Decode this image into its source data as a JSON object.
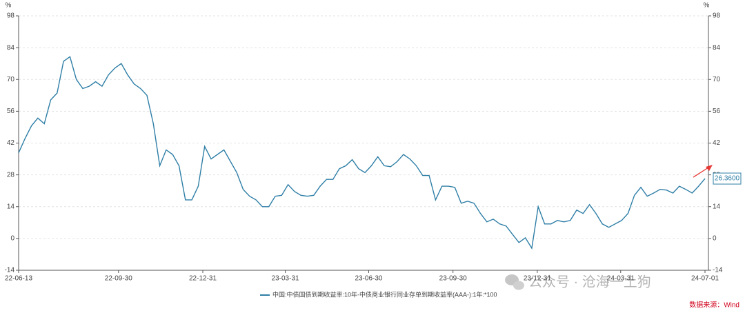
{
  "chart_data": {
    "type": "line",
    "y_unit": "%",
    "y2_unit": "%",
    "x": [
      "22-06-13",
      "22-06-20",
      "22-06-27",
      "22-07-04",
      "22-07-11",
      "22-07-18",
      "22-07-25",
      "22-08-01",
      "22-08-08",
      "22-08-15",
      "22-08-22",
      "22-08-29",
      "22-09-05",
      "22-09-12",
      "22-09-19",
      "22-09-26",
      "22-10-03",
      "22-10-10",
      "22-10-17",
      "22-10-24",
      "22-10-31",
      "22-11-07",
      "22-11-14",
      "22-11-21",
      "22-11-28",
      "22-12-05",
      "22-12-12",
      "22-12-19",
      "22-12-26",
      "23-01-02",
      "23-01-09",
      "23-01-16",
      "23-01-23",
      "23-01-30",
      "23-02-06",
      "23-02-13",
      "23-02-20",
      "23-02-27",
      "23-03-06",
      "23-03-13",
      "23-03-20",
      "23-03-27",
      "23-04-03",
      "23-04-10",
      "23-04-17",
      "23-04-24",
      "23-05-01",
      "23-05-08",
      "23-05-15",
      "23-05-22",
      "23-05-29",
      "23-06-05",
      "23-06-12",
      "23-06-19",
      "23-06-26",
      "23-07-03",
      "23-07-10",
      "23-07-17",
      "23-07-24",
      "23-07-31",
      "23-08-07",
      "23-08-14",
      "23-08-21",
      "23-08-28",
      "23-09-04",
      "23-09-11",
      "23-09-18",
      "23-09-25",
      "23-10-02",
      "23-10-09",
      "23-10-16",
      "23-10-23",
      "23-10-30",
      "23-11-06",
      "23-11-13",
      "23-11-20",
      "23-11-27",
      "23-12-04",
      "23-12-11",
      "23-12-18",
      "23-12-25",
      "24-01-01",
      "24-01-08",
      "24-01-15",
      "24-01-22",
      "24-01-29",
      "24-02-05",
      "24-02-12",
      "24-02-19",
      "24-02-26",
      "24-03-04",
      "24-03-11",
      "24-03-18",
      "24-03-25",
      "24-04-01",
      "24-04-08",
      "24-04-15",
      "24-04-22",
      "24-04-29",
      "24-05-06",
      "24-05-13",
      "24-05-20",
      "24-05-27",
      "24-06-03",
      "24-06-10",
      "24-06-17",
      "24-06-24",
      "24-07-01"
    ],
    "series": [
      {
        "name": "中国:中债国债到期收益率:10年-中债商业银行同业存单到期收益率(AAA-):1年:*100",
        "color": "#2e7ea6",
        "values": [
          37.7,
          44,
          49.6,
          53,
          50.5,
          61,
          64,
          78,
          80,
          70,
          66,
          67,
          69,
          67,
          72,
          75,
          77,
          72,
          68,
          66,
          63,
          50.5,
          32,
          39,
          37,
          32,
          17,
          17,
          23,
          40.5,
          35,
          37,
          39,
          34,
          29,
          21.6,
          18.6,
          17,
          14,
          14,
          18.6,
          19,
          23.7,
          20.7,
          19,
          18.6,
          19,
          23,
          26,
          26,
          30.7,
          32,
          34.7,
          30.7,
          29,
          32,
          36,
          32,
          31.6,
          33.8,
          37,
          35,
          32,
          27.7,
          27.7,
          17,
          23,
          23,
          22.5,
          15.5,
          16.4,
          15.5,
          11,
          7.3,
          8.5,
          6.4,
          5.5,
          1.8,
          -1.8,
          0.3,
          -4.3,
          14,
          6.4,
          6.4,
          7.9,
          7.3,
          7.9,
          12.5,
          11,
          14.9,
          11,
          6.4,
          4.9,
          6.4,
          7.9,
          11,
          19,
          22.5,
          18.6,
          20,
          21.6,
          21.3,
          20,
          23,
          21.6,
          20,
          23,
          26.36
        ],
        "value_labels": [
          null,
          null,
          null,
          null,
          null,
          null,
          null,
          null,
          null,
          null,
          null,
          null,
          null,
          null,
          null,
          null,
          null,
          null,
          null,
          null,
          null,
          null,
          null,
          null,
          null,
          null,
          null,
          null,
          null,
          null,
          null,
          null,
          null,
          null,
          null,
          null,
          null,
          null,
          null,
          null,
          null,
          null,
          null,
          null,
          null,
          null,
          null,
          null,
          null,
          null,
          null,
          null,
          null,
          null,
          null,
          null,
          null,
          null,
          null,
          null,
          null,
          null,
          null,
          null,
          null,
          null,
          null,
          null,
          null,
          null,
          null,
          null,
          null,
          null,
          null,
          null,
          null,
          null,
          null,
          null,
          null,
          null,
          null,
          null,
          null,
          null,
          null,
          null,
          null,
          null,
          null,
          null,
          null,
          null,
          null,
          null,
          null,
          null,
          null,
          null,
          null,
          null,
          null,
          null,
          null,
          null,
          null,
          "26.3600"
        ]
      }
    ],
    "xlim": [
      "22-06-13",
      "24-07-01"
    ],
    "xticks": [
      "22-06-13",
      "22-09-30",
      "22-12-31",
      "23-03-31",
      "23-06-30",
      "23-09-30",
      "23-12-31",
      "24-03-31",
      "24-07-01"
    ],
    "ylim": [
      -14,
      98
    ],
    "yticks": [
      -14,
      0,
      14,
      28,
      42,
      56,
      70,
      84,
      98
    ],
    "y2lim": [
      -14,
      98
    ],
    "y2ticks": [
      -14,
      0,
      14,
      28,
      42,
      56,
      70,
      84,
      98
    ],
    "grid": true,
    "source": "数据来源：Wind",
    "watermark": "公众号 · 沧海一土狗"
  }
}
